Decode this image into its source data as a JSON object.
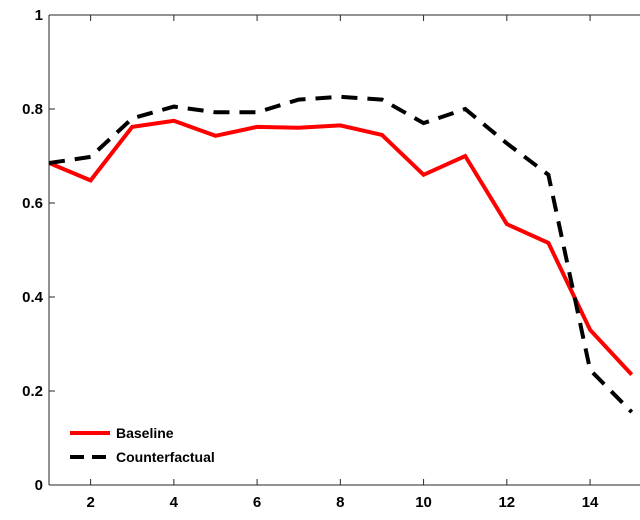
{
  "chart_data": {
    "type": "line",
    "title": "",
    "xlabel": "",
    "ylabel": "",
    "x": [
      1,
      2,
      3,
      4,
      5,
      6,
      7,
      8,
      9,
      10,
      11,
      12,
      13,
      14,
      15
    ],
    "xlim": [
      1,
      15
    ],
    "ylim": [
      0,
      1
    ],
    "xticks": [
      2,
      4,
      6,
      8,
      10,
      12,
      14
    ],
    "yticks": [
      0,
      0.2,
      0.4,
      0.6,
      0.8,
      1
    ],
    "ytick_labels": [
      "0",
      "0.2",
      "0.4",
      "0.6",
      "0.8",
      "1"
    ],
    "grid": false,
    "legend_position": "bottom-left",
    "series": [
      {
        "name": "Baseline",
        "color": "#ff0000",
        "style": "solid",
        "values": [
          0.685,
          0.648,
          0.762,
          0.775,
          0.743,
          0.762,
          0.76,
          0.765,
          0.745,
          0.66,
          0.7,
          0.555,
          0.515,
          0.33,
          0.235
        ]
      },
      {
        "name": "Counterfactual",
        "color": "#000000",
        "style": "dashed",
        "values": [
          0.685,
          0.698,
          0.78,
          0.805,
          0.793,
          0.793,
          0.82,
          0.826,
          0.82,
          0.77,
          0.8,
          0.727,
          0.66,
          0.245,
          0.155
        ]
      }
    ]
  }
}
